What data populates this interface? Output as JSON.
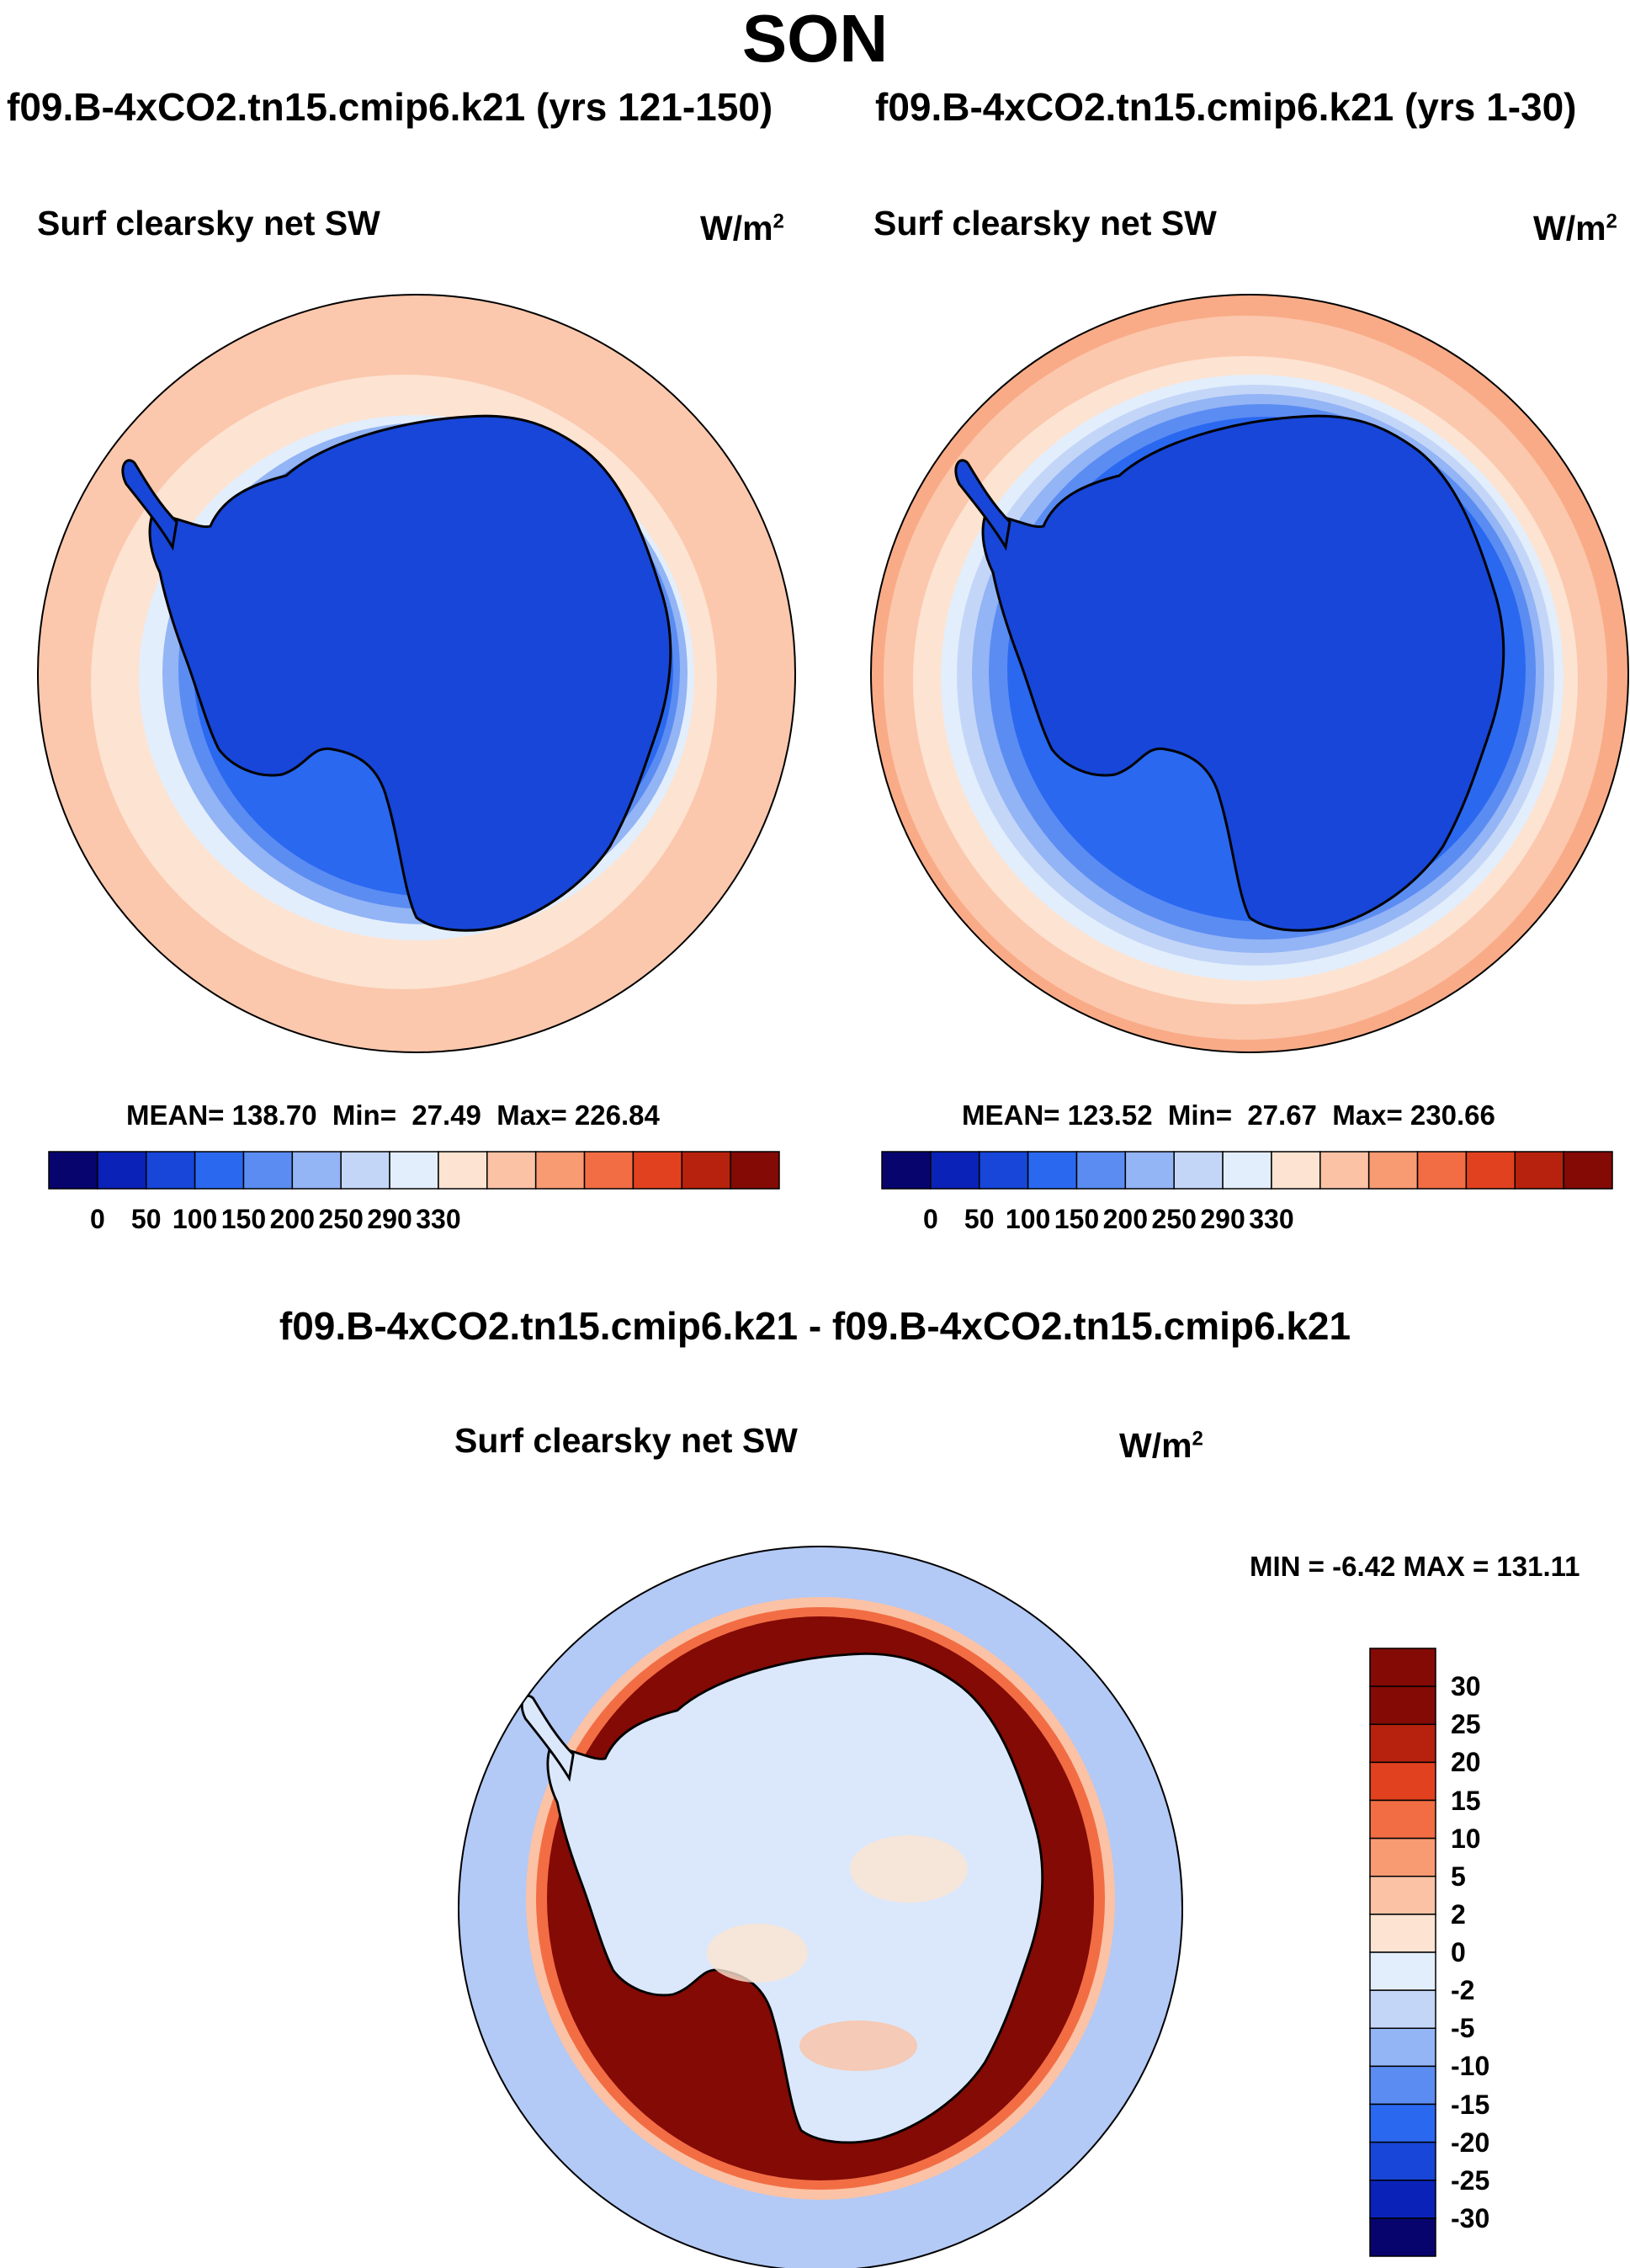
{
  "title": "SON",
  "panels": [
    {
      "case_title": "f09.B-4xCO2.tn15.cmip6.k21 (yrs 121-150)",
      "variable": "Surf clearsky net SW",
      "units_base": "W/m",
      "units_exp": "2",
      "mean_label": "MEAN=",
      "mean": "138.70",
      "min_label": "Min=",
      "min": "27.49",
      "max_label": "Max=",
      "max": "226.84"
    },
    {
      "case_title": "f09.B-4xCO2.tn15.cmip6.k21 (yrs 1-30)",
      "variable": "Surf clearsky net SW",
      "units_base": "W/m",
      "units_exp": "2",
      "mean_label": "MEAN=",
      "mean": "123.52",
      "min_label": "Min=",
      "min": "27.67",
      "max_label": "Max=",
      "max": "230.66"
    }
  ],
  "diff_panel": {
    "title": "f09.B-4xCO2.tn15.cmip6.k21 - f09.B-4xCO2.tn15.cmip6.k21",
    "variable": "Surf clearsky net SW",
    "units_base": "W/m",
    "units_exp": "2",
    "range_text": "MIN =  -6.42 MAX = 131.11"
  },
  "colorbar_main": {
    "tick_labels": [
      "0",
      "50",
      "100",
      "150",
      "200",
      "250",
      "290",
      "330"
    ],
    "colors": [
      "#08046e",
      "#0a22b8",
      "#1746d8",
      "#2a68f0",
      "#5b8cf2",
      "#93b4f5",
      "#c4d6f8",
      "#e3eefc",
      "#fde3d1",
      "#fbc2a5",
      "#f89a72",
      "#f26d44",
      "#e2411f",
      "#b6220d",
      "#830a05"
    ]
  },
  "colorbar_diff": {
    "tick_labels": [
      "30",
      "25",
      "20",
      "15",
      "10",
      "5",
      "2",
      "0",
      "-2",
      "-5",
      "-10",
      "-15",
      "-20",
      "-25",
      "-30"
    ],
    "colors": [
      "#830a05",
      "#b6220d",
      "#e2411f",
      "#f26d44",
      "#f89a72",
      "#fbc2a5",
      "#fde3d1",
      "#e3eefc",
      "#c4d6f8",
      "#93b4f5",
      "#5b8cf2",
      "#2a68f0",
      "#1746d8",
      "#0a22b8",
      "#08046e"
    ]
  }
}
